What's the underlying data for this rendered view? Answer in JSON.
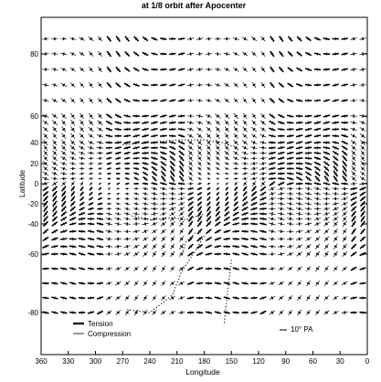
{
  "figure": {
    "title": "at 1/8 orbit after Apocenter",
    "xlabel": "Longitude",
    "ylabel": "Latitude"
  },
  "axes": {
    "x_range": [
      360,
      0
    ],
    "y_display": [
      {
        "lat": 80,
        "label": "80"
      },
      {
        "lat": 60,
        "label": "60"
      },
      {
        "lat": 40,
        "label": "40"
      },
      {
        "lat": 20,
        "label": "20"
      },
      {
        "lat": 0,
        "label": "0"
      },
      {
        "lat": -20,
        "label": "-20"
      },
      {
        "lat": -40,
        "label": "-40"
      },
      {
        "lat": -60,
        "label": "-60"
      },
      {
        "lat": -80,
        "label": "-80"
      }
    ],
    "x_ticks": [
      {
        "value": 360,
        "label": "360"
      },
      {
        "value": 330,
        "label": "330"
      },
      {
        "value": 300,
        "label": "300"
      },
      {
        "value": 270,
        "label": "270"
      },
      {
        "value": 240,
        "label": "240"
      },
      {
        "value": 210,
        "label": "210"
      },
      {
        "value": 180,
        "label": "180"
      },
      {
        "value": 150,
        "label": "150"
      },
      {
        "value": 120,
        "label": "120"
      },
      {
        "value": 90,
        "label": "90"
      },
      {
        "value": 60,
        "label": "60"
      },
      {
        "value": 30,
        "label": "30"
      },
      {
        "value": 0,
        "label": "0"
      }
    ]
  },
  "legend": {
    "tension": "Tension",
    "compression": "Compression",
    "scale": "10° PA"
  },
  "colors": {
    "ink": "#000000",
    "background": "#ffffff"
  }
}
